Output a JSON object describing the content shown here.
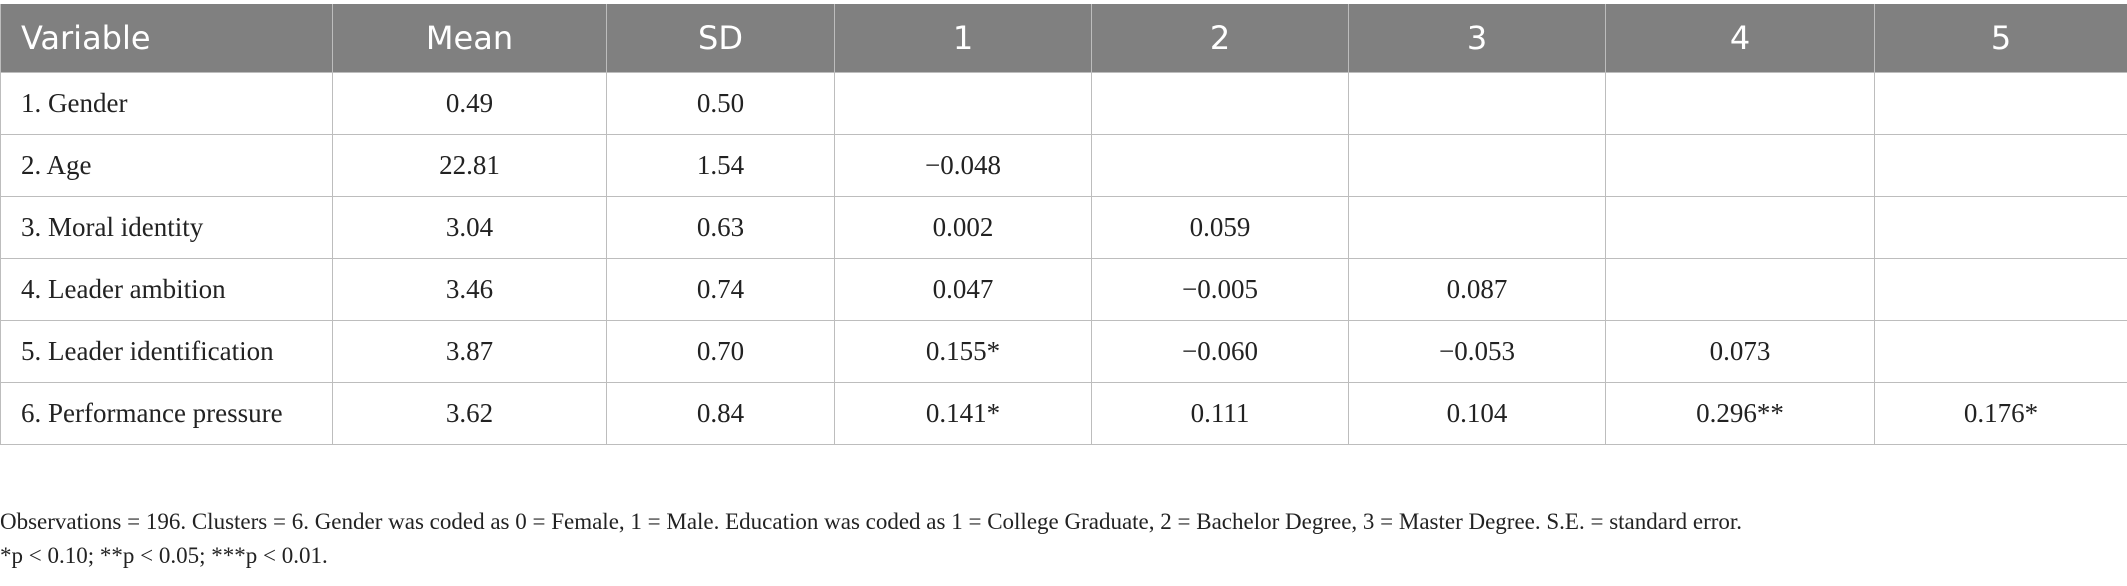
{
  "table": {
    "headers": [
      "Variable",
      "Mean",
      "SD",
      "1",
      "2",
      "3",
      "4",
      "5"
    ],
    "rows": [
      [
        "1. Gender",
        "0.49",
        "0.50",
        "",
        "",
        "",
        "",
        ""
      ],
      [
        "2. Age",
        "22.81",
        "1.54",
        "−0.048",
        "",
        "",
        "",
        ""
      ],
      [
        "3. Moral identity",
        "3.04",
        "0.63",
        "0.002",
        "0.059",
        "",
        "",
        ""
      ],
      [
        "4. Leader ambition",
        "3.46",
        "0.74",
        "0.047",
        "−0.005",
        "0.087",
        "",
        ""
      ],
      [
        "5. Leader identification",
        "3.87",
        "0.70",
        "0.155*",
        "−0.060",
        "−0.053",
        "0.073",
        ""
      ],
      [
        "6. Performance pressure",
        "3.62",
        "0.84",
        "0.141*",
        "0.111",
        "0.104",
        "0.296**",
        "0.176*"
      ]
    ]
  },
  "notes": {
    "line1": "Observations = 196. Clusters = 6. Gender was coded as 0 = Female, 1 = Male. Education was coded as 1 = College Graduate, 2 = Bachelor Degree, 3 = Master Degree. S.E. = standard error.",
    "line2": "*p < 0.10; **p < 0.05; ***p < 0.01."
  },
  "colors": {
    "header_bg": "#808080",
    "header_text": "#ffffff",
    "grid": "#bdbdbd",
    "body_text": "#222222"
  }
}
